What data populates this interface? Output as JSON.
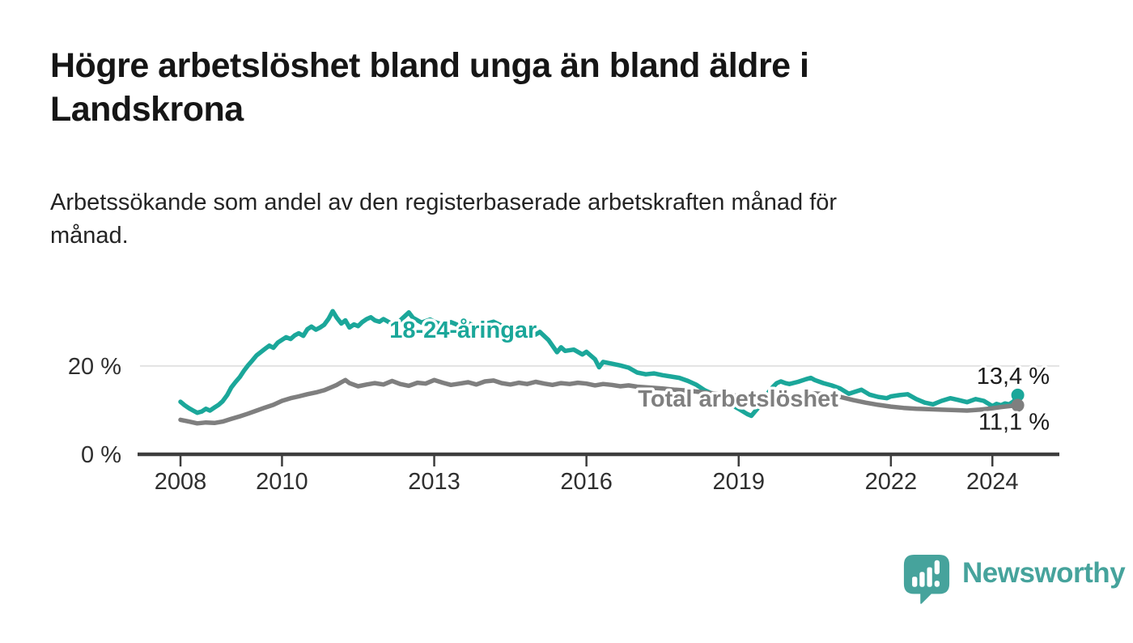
{
  "header": {
    "title_lines": [
      "Högre arbetslöshet bland unga än bland äldre i",
      "Landskrona"
    ],
    "subtitle_lines": [
      "Arbetssökande som andel av den registerbaserade arbetskraften månad för",
      "månad."
    ]
  },
  "chart_data": {
    "type": "line",
    "title": "Högre arbetslöshet bland unga än bland äldre i Landskrona",
    "subtitle": "Arbetssökande som andel av den registerbaserade arbetskraften månad för månad.",
    "xlabel": "",
    "ylabel": "",
    "unit": "%",
    "grid": "single-horizontal-at-20",
    "legend_position": "inline-labels",
    "xlim": [
      2007.17,
      2025.32
    ],
    "ylim": [
      0,
      35
    ],
    "x_ticks": [
      "2008",
      "2010",
      "2013",
      "2016",
      "2019",
      "2022",
      "2024"
    ],
    "x_tick_years": [
      2008,
      2010,
      2013,
      2016,
      2019,
      2022,
      2024
    ],
    "y_ticks": [
      {
        "value": 0,
        "label": "0 %",
        "is_axis": true,
        "has_grid": false
      },
      {
        "value": 20,
        "label": "20 %",
        "is_axis": false,
        "has_grid": true
      }
    ],
    "axis_color": "#3d3d3d",
    "grid_color": "#e3e3e3",
    "series": [
      {
        "name": "18-24-åringar",
        "slug": "youth",
        "color": "#1ba79a",
        "end_label": "13,4 %",
        "end_label_side": "above",
        "inline_label_anchor": {
          "x": 2013.57,
          "y": 28.2
        },
        "points": [
          [
            2008.0,
            11.9
          ],
          [
            2008.08,
            11.1
          ],
          [
            2008.17,
            10.4
          ],
          [
            2008.25,
            9.9
          ],
          [
            2008.33,
            9.4
          ],
          [
            2008.42,
            9.7
          ],
          [
            2008.5,
            10.3
          ],
          [
            2008.58,
            9.9
          ],
          [
            2008.67,
            10.6
          ],
          [
            2008.75,
            11.2
          ],
          [
            2008.83,
            12.0
          ],
          [
            2008.92,
            13.4
          ],
          [
            2009.0,
            15.1
          ],
          [
            2009.08,
            16.3
          ],
          [
            2009.17,
            17.5
          ],
          [
            2009.25,
            18.9
          ],
          [
            2009.33,
            20.1
          ],
          [
            2009.42,
            21.3
          ],
          [
            2009.5,
            22.4
          ],
          [
            2009.58,
            23.1
          ],
          [
            2009.67,
            23.9
          ],
          [
            2009.75,
            24.6
          ],
          [
            2009.83,
            24.1
          ],
          [
            2009.92,
            25.3
          ],
          [
            2010.0,
            25.9
          ],
          [
            2010.08,
            26.5
          ],
          [
            2010.17,
            26.1
          ],
          [
            2010.25,
            26.9
          ],
          [
            2010.33,
            27.4
          ],
          [
            2010.42,
            26.8
          ],
          [
            2010.5,
            28.3
          ],
          [
            2010.58,
            28.9
          ],
          [
            2010.67,
            28.2
          ],
          [
            2010.75,
            28.7
          ],
          [
            2010.83,
            29.3
          ],
          [
            2010.92,
            30.7
          ],
          [
            2011.0,
            32.4
          ],
          [
            2011.08,
            30.9
          ],
          [
            2011.17,
            29.6
          ],
          [
            2011.25,
            30.3
          ],
          [
            2011.33,
            28.7
          ],
          [
            2011.42,
            29.4
          ],
          [
            2011.5,
            29.0
          ],
          [
            2011.58,
            29.9
          ],
          [
            2011.67,
            30.6
          ],
          [
            2011.75,
            31.0
          ],
          [
            2011.83,
            30.3
          ],
          [
            2011.92,
            30.0
          ],
          [
            2012.0,
            30.6
          ],
          [
            2012.17,
            29.5
          ],
          [
            2012.33,
            30.3
          ],
          [
            2012.5,
            32.1
          ],
          [
            2012.58,
            30.9
          ],
          [
            2012.75,
            29.8
          ],
          [
            2012.92,
            30.5
          ],
          [
            2013.0,
            30.0
          ],
          [
            2013.17,
            29.3
          ],
          [
            2013.33,
            29.9
          ],
          [
            2013.5,
            29.1
          ],
          [
            2013.67,
            29.7
          ],
          [
            2013.83,
            28.9
          ],
          [
            2014.0,
            29.5
          ],
          [
            2014.17,
            30.0
          ],
          [
            2014.33,
            29.1
          ],
          [
            2014.5,
            28.5
          ],
          [
            2014.67,
            28.9
          ],
          [
            2014.83,
            27.9
          ],
          [
            2015.0,
            27.1
          ],
          [
            2015.08,
            27.7
          ],
          [
            2015.25,
            25.9
          ],
          [
            2015.42,
            23.1
          ],
          [
            2015.5,
            24.2
          ],
          [
            2015.58,
            23.4
          ],
          [
            2015.75,
            23.7
          ],
          [
            2015.92,
            22.6
          ],
          [
            2016.0,
            23.2
          ],
          [
            2016.17,
            21.5
          ],
          [
            2016.25,
            19.7
          ],
          [
            2016.33,
            20.9
          ],
          [
            2016.5,
            20.5
          ],
          [
            2016.67,
            20.1
          ],
          [
            2016.83,
            19.6
          ],
          [
            2017.0,
            18.5
          ],
          [
            2017.17,
            18.1
          ],
          [
            2017.33,
            18.3
          ],
          [
            2017.5,
            17.9
          ],
          [
            2017.67,
            17.6
          ],
          [
            2017.83,
            17.3
          ],
          [
            2018.0,
            16.6
          ],
          [
            2018.17,
            15.7
          ],
          [
            2018.33,
            14.5
          ],
          [
            2018.5,
            13.6
          ],
          [
            2018.67,
            12.6
          ],
          [
            2018.83,
            11.4
          ],
          [
            2019.0,
            10.3
          ],
          [
            2019.17,
            9.1
          ],
          [
            2019.25,
            8.7
          ],
          [
            2019.33,
            9.8
          ],
          [
            2019.42,
            11.0
          ],
          [
            2019.5,
            12.4
          ],
          [
            2019.58,
            13.9
          ],
          [
            2019.67,
            15.2
          ],
          [
            2019.75,
            16.1
          ],
          [
            2019.83,
            16.5
          ],
          [
            2019.92,
            16.1
          ],
          [
            2020.0,
            15.9
          ],
          [
            2020.17,
            16.4
          ],
          [
            2020.33,
            17.0
          ],
          [
            2020.42,
            17.3
          ],
          [
            2020.5,
            16.8
          ],
          [
            2020.67,
            16.1
          ],
          [
            2020.83,
            15.6
          ],
          [
            2021.0,
            14.9
          ],
          [
            2021.17,
            13.7
          ],
          [
            2021.25,
            14.0
          ],
          [
            2021.42,
            14.6
          ],
          [
            2021.58,
            13.5
          ],
          [
            2021.75,
            13.0
          ],
          [
            2021.92,
            12.7
          ],
          [
            2022.0,
            13.1
          ],
          [
            2022.17,
            13.4
          ],
          [
            2022.33,
            13.6
          ],
          [
            2022.5,
            12.5
          ],
          [
            2022.67,
            11.7
          ],
          [
            2022.83,
            11.3
          ],
          [
            2023.0,
            12.1
          ],
          [
            2023.17,
            12.7
          ],
          [
            2023.33,
            12.3
          ],
          [
            2023.5,
            11.8
          ],
          [
            2023.67,
            12.5
          ],
          [
            2023.83,
            12.1
          ],
          [
            2024.0,
            10.9
          ],
          [
            2024.08,
            11.4
          ],
          [
            2024.17,
            11.1
          ],
          [
            2024.25,
            11.5
          ],
          [
            2024.33,
            11.3
          ],
          [
            2024.42,
            12.0
          ],
          [
            2024.5,
            13.4
          ]
        ]
      },
      {
        "name": "Total arbetslöshet",
        "slug": "total",
        "color": "#7f7f7f",
        "end_label": "11,1 %",
        "end_label_side": "below",
        "inline_label_anchor": {
          "x": 2018.99,
          "y": 12.6
        },
        "points": [
          [
            2008.0,
            7.8
          ],
          [
            2008.17,
            7.4
          ],
          [
            2008.33,
            7.0
          ],
          [
            2008.5,
            7.2
          ],
          [
            2008.67,
            7.1
          ],
          [
            2008.83,
            7.4
          ],
          [
            2009.0,
            8.0
          ],
          [
            2009.17,
            8.6
          ],
          [
            2009.33,
            9.2
          ],
          [
            2009.5,
            9.9
          ],
          [
            2009.67,
            10.6
          ],
          [
            2009.83,
            11.2
          ],
          [
            2010.0,
            12.1
          ],
          [
            2010.17,
            12.7
          ],
          [
            2010.33,
            13.1
          ],
          [
            2010.5,
            13.6
          ],
          [
            2010.67,
            14.0
          ],
          [
            2010.83,
            14.5
          ],
          [
            2011.0,
            15.3
          ],
          [
            2011.08,
            15.7
          ],
          [
            2011.17,
            16.3
          ],
          [
            2011.25,
            16.8
          ],
          [
            2011.33,
            16.1
          ],
          [
            2011.5,
            15.4
          ],
          [
            2011.67,
            15.8
          ],
          [
            2011.83,
            16.1
          ],
          [
            2012.0,
            15.8
          ],
          [
            2012.17,
            16.6
          ],
          [
            2012.33,
            15.9
          ],
          [
            2012.5,
            15.5
          ],
          [
            2012.67,
            16.2
          ],
          [
            2012.83,
            16.0
          ],
          [
            2013.0,
            16.8
          ],
          [
            2013.17,
            16.2
          ],
          [
            2013.33,
            15.7
          ],
          [
            2013.5,
            16.0
          ],
          [
            2013.67,
            16.3
          ],
          [
            2013.83,
            15.8
          ],
          [
            2014.0,
            16.5
          ],
          [
            2014.17,
            16.7
          ],
          [
            2014.33,
            16.1
          ],
          [
            2014.5,
            15.8
          ],
          [
            2014.67,
            16.2
          ],
          [
            2014.83,
            15.9
          ],
          [
            2015.0,
            16.4
          ],
          [
            2015.17,
            16.0
          ],
          [
            2015.33,
            15.7
          ],
          [
            2015.5,
            16.1
          ],
          [
            2015.67,
            15.9
          ],
          [
            2015.83,
            16.2
          ],
          [
            2016.0,
            16.0
          ],
          [
            2016.17,
            15.6
          ],
          [
            2016.33,
            15.9
          ],
          [
            2016.5,
            15.7
          ],
          [
            2016.67,
            15.4
          ],
          [
            2016.83,
            15.6
          ],
          [
            2017.0,
            15.3
          ],
          [
            2017.25,
            15.1
          ],
          [
            2017.5,
            14.9
          ],
          [
            2017.75,
            14.6
          ],
          [
            2018.0,
            14.4
          ],
          [
            2018.25,
            14.1
          ],
          [
            2018.5,
            13.8
          ],
          [
            2018.75,
            13.5
          ],
          [
            2019.0,
            13.2
          ],
          [
            2019.25,
            13.0
          ],
          [
            2019.5,
            12.9
          ],
          [
            2019.75,
            13.1
          ],
          [
            2020.0,
            13.0
          ],
          [
            2020.25,
            13.4
          ],
          [
            2020.5,
            13.8
          ],
          [
            2020.75,
            13.5
          ],
          [
            2021.0,
            13.0
          ],
          [
            2021.25,
            12.3
          ],
          [
            2021.5,
            11.7
          ],
          [
            2021.75,
            11.2
          ],
          [
            2022.0,
            10.8
          ],
          [
            2022.25,
            10.5
          ],
          [
            2022.5,
            10.3
          ],
          [
            2022.75,
            10.2
          ],
          [
            2023.0,
            10.1
          ],
          [
            2023.25,
            10.0
          ],
          [
            2023.5,
            9.9
          ],
          [
            2023.75,
            10.1
          ],
          [
            2024.0,
            10.4
          ],
          [
            2024.17,
            10.7
          ],
          [
            2024.33,
            10.9
          ],
          [
            2024.5,
            11.1
          ]
        ]
      }
    ]
  },
  "branding": {
    "logo_text": "Newsworthy",
    "logo_icon": "newsworthy-speech-bubble-bar-chart-icon",
    "color": "#46a39c"
  }
}
